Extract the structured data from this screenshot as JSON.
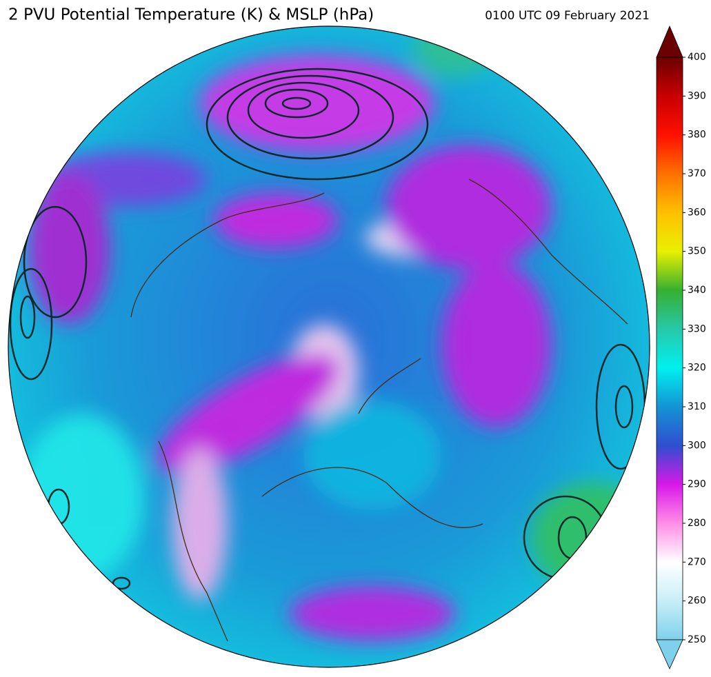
{
  "chart_data": {
    "type": "colorbar-map",
    "title": "2 PVU Potential Temperature (K) & MSLP (hPa)",
    "subtitle": "0100 UTC 09 February 2021",
    "ylim": [
      250,
      400
    ],
    "yticks": [
      250,
      260,
      270,
      280,
      290,
      300,
      310,
      320,
      330,
      340,
      350,
      360,
      370,
      380,
      390,
      400
    ],
    "colors": [
      "#7fd0ea",
      "#c8eef8",
      "#ffffff",
      "#ff8ee6",
      "#d818e8",
      "#2f4fd0",
      "#1394d4",
      "#00f0ee",
      "#26c8a8",
      "#36b030",
      "#e8f000",
      "#ffc000",
      "#ff7000",
      "#ff1000",
      "#c80000",
      "#6a0000"
    ]
  }
}
